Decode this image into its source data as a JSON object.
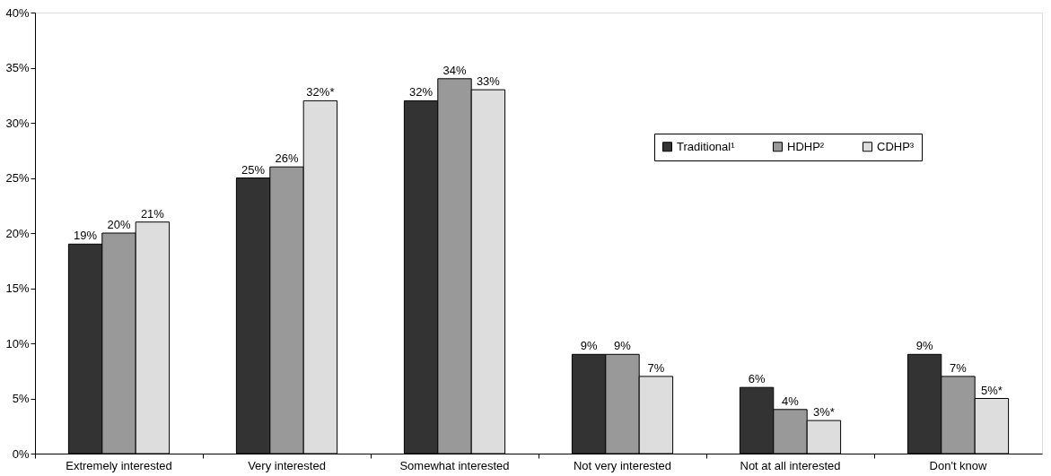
{
  "chart_data": {
    "type": "bar",
    "categories": [
      "Extremely interested",
      "Very interested",
      "Somewhat interested",
      "Not very interested",
      "Not at all interested",
      "Don't know"
    ],
    "series": [
      {
        "name": "Traditional¹",
        "color": "#333333",
        "values": [
          19,
          25,
          32,
          9,
          6,
          9
        ],
        "value_labels": [
          "19%",
          "25%",
          "32%",
          "9%",
          "6%",
          "9%"
        ]
      },
      {
        "name": "HDHP²",
        "color": "#999999",
        "values": [
          20,
          26,
          34,
          9,
          4,
          7
        ],
        "value_labels": [
          "20%",
          "26%",
          "34%",
          "9%",
          "4%",
          "7%"
        ]
      },
      {
        "name": "CDHP³",
        "color": "#dddddd",
        "values": [
          21,
          32,
          33,
          7,
          3,
          5
        ],
        "value_labels": [
          "21%",
          "32%*",
          "33%",
          "7%",
          "3%*",
          "5%*"
        ]
      }
    ],
    "ylim": [
      0,
      40
    ],
    "yticks": [
      {
        "value": 0,
        "label": "0%"
      },
      {
        "value": 5,
        "label": "5%"
      },
      {
        "value": 10,
        "label": "10%"
      },
      {
        "value": 15,
        "label": "15%"
      },
      {
        "value": 20,
        "label": "20%"
      },
      {
        "value": 25,
        "label": "25%"
      },
      {
        "value": 30,
        "label": "30%"
      },
      {
        "value": 35,
        "label": "35%"
      },
      {
        "value": 40,
        "label": "40%"
      }
    ],
    "grid": false,
    "legend": "top right"
  }
}
